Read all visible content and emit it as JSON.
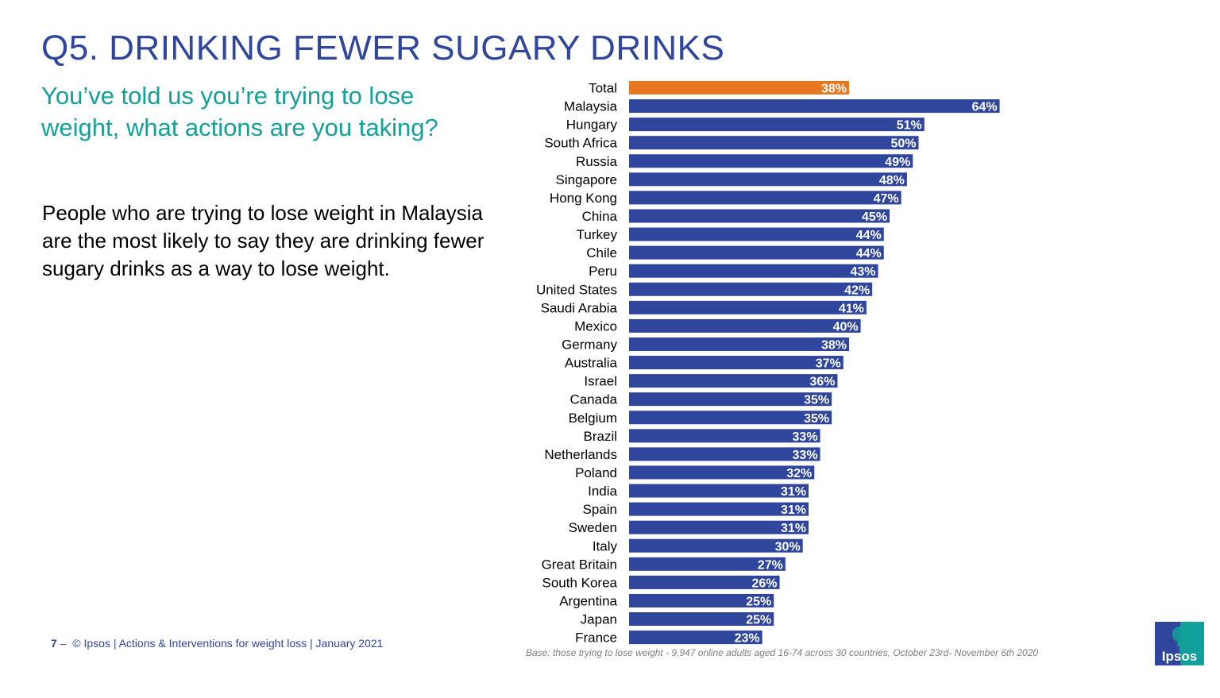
{
  "slide": {
    "title": "Q5. DRINKING FEWER SUGARY DRINKS",
    "subtitle": "You’ve told us you’re trying to lose weight, what actions are you taking?",
    "body": "People who are trying to lose weight in Malaysia are the most likely to say they are drinking fewer sugary drinks as a way to lose weight.",
    "footer": {
      "page_number": "7",
      "separator": "–",
      "text": "© Ipsos | Actions & Interventions for weight loss | January 2021"
    },
    "base_note": "Base: those trying to lose weight - 9,947 online adults aged 16-74 across 30 countries, October 23rd- November 6th 2020",
    "logo": {
      "text": "Ipsos",
      "icon": "ipsos-logo-icon",
      "colors": [
        "#2f469c",
        "#12a19a"
      ]
    }
  },
  "colors": {
    "title": "#2f469c",
    "subtitle": "#12a19a",
    "bar": "#2f469c",
    "highlight_bar": "#e87722",
    "bar_label": "#ffffff"
  },
  "chart_data": {
    "type": "bar",
    "orientation": "horizontal",
    "title": "",
    "xlabel": "",
    "ylabel": "",
    "xlim": [
      0,
      100
    ],
    "grid": false,
    "value_suffix": "%",
    "highlight_category": "Total",
    "categories": [
      "Total",
      "Malaysia",
      "Hungary",
      "South Africa",
      "Russia",
      "Singapore",
      "Hong Kong",
      "China",
      "Turkey",
      "Chile",
      "Peru",
      "United States",
      "Saudi Arabia",
      "Mexico",
      "Germany",
      "Australia",
      "Israel",
      "Canada",
      "Belgium",
      "Brazil",
      "Netherlands",
      "Poland",
      "India",
      "Spain",
      "Sweden",
      "Italy",
      "Great Britain",
      "South Korea",
      "Argentina",
      "Japan",
      "France"
    ],
    "values": [
      38,
      64,
      51,
      50,
      49,
      48,
      47,
      45,
      44,
      44,
      43,
      42,
      41,
      40,
      38,
      37,
      36,
      35,
      35,
      33,
      33,
      32,
      31,
      31,
      31,
      30,
      27,
      26,
      25,
      25,
      23
    ]
  }
}
